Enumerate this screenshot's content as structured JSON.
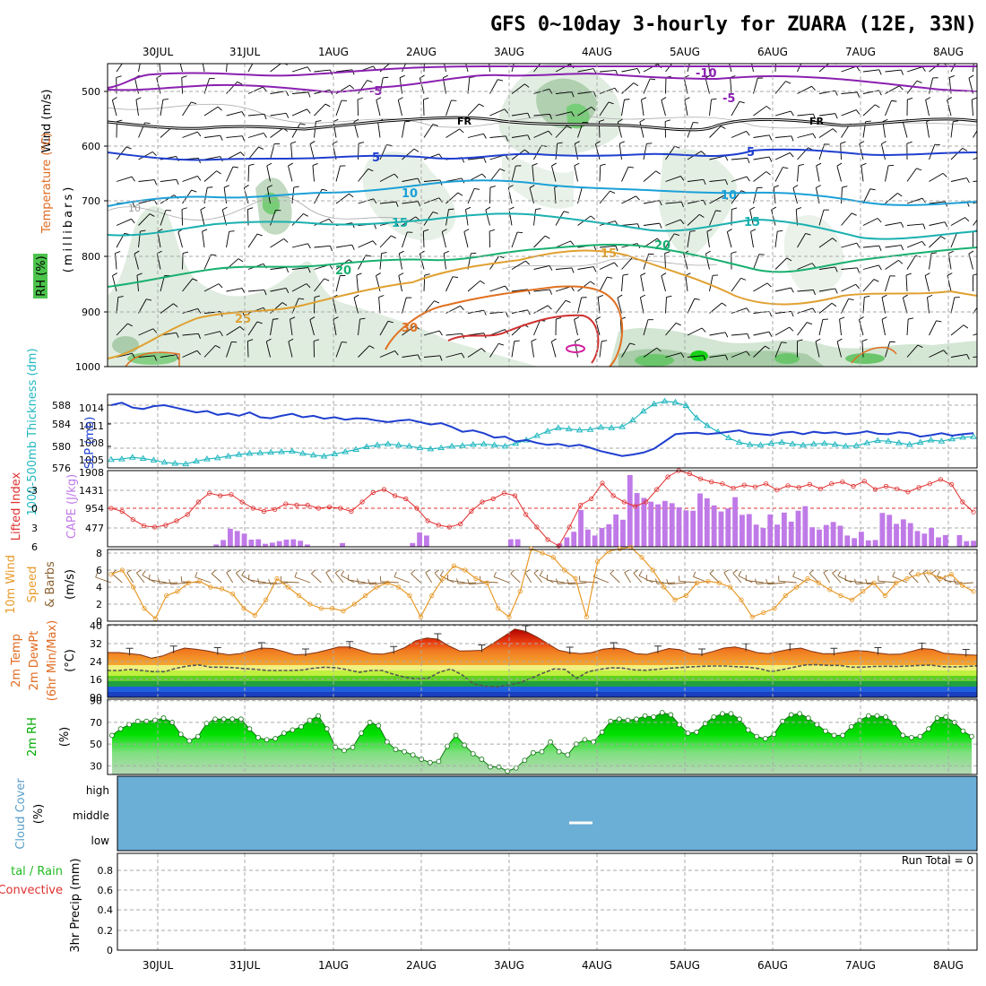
{
  "header": {
    "title": "GFS 0~10day 3-hourly for ZUARA (12E, 33N)"
  },
  "x_axis": {
    "dates": [
      "30JUL",
      "31JUL",
      "1AUG",
      "2AUG",
      "3AUG",
      "4AUG",
      "5AUG",
      "6AUG",
      "7AUG",
      "8AUG"
    ]
  },
  "panels": {
    "upper": {
      "y_title": "(millibars)",
      "label_wind": "Wind (m/s)",
      "label_temp": "Temperature (°C)",
      "label_rh": "RH (%)",
      "ticks": [
        "500",
        "600",
        "700",
        "800",
        "900",
        "1000"
      ],
      "contour_labels": {
        "m10": "-10",
        "m5": "-5",
        "fr": "FR",
        "p5": "5",
        "p10": "10",
        "p15": "15",
        "p20": "20",
        "p25": "25",
        "p30": "30",
        "g10": "10"
      }
    },
    "slp": {
      "label_thk": "1000-500mb Thickness (dm)",
      "label_slp": "SLP (mb)",
      "left_ticks": [
        "588",
        "584",
        "580",
        "576"
      ],
      "right_ticks": [
        "1014",
        "1011",
        "1008",
        "1005"
      ]
    },
    "cape": {
      "label_li": "Lifted Index",
      "label_cape": "CAPE (J/kg)",
      "left_ticks": [
        "-3",
        "0",
        "3",
        "6"
      ],
      "right_ticks": [
        "1908",
        "1431",
        "954",
        "477"
      ]
    },
    "wind": {
      "label_1": "10m Wind",
      "label_2": "Speed",
      "label_3": "& Barbs",
      "unit": "(m/s)",
      "ticks": [
        "8",
        "6",
        "4",
        "2",
        "0"
      ]
    },
    "temp": {
      "label_1": "2m Temp",
      "label_2": "2m DewPt",
      "label_3": "(6hr Min/Max)",
      "unit": "(°C)",
      "ticks": [
        "40",
        "32",
        "24",
        "16",
        "90"
      ]
    },
    "rh": {
      "label": "2m RH",
      "unit": "(%)",
      "ticks": [
        "90",
        "70",
        "50",
        "30"
      ]
    },
    "cloud": {
      "label": "Cloud Cover",
      "unit": "(%)",
      "levels": [
        "high",
        "middle",
        "low"
      ]
    },
    "precip": {
      "label_1": "tal / Rain",
      "label_2": "Convective",
      "label_3": "3hr Precip (mm)",
      "run_total": "Run Total = 0",
      "ticks": [
        "0.8",
        "0.6",
        "0.4",
        "0.2",
        "0"
      ]
    }
  },
  "colors": {
    "slp": "#1f3fcf",
    "thickness": "#22b8c0",
    "lifted": "#e03030",
    "cape_bar": "#c07ae8",
    "wind": "#e89a2a",
    "cloud": "#6baed6",
    "rh_fill": "#00cc00"
  },
  "chart_data": [
    {
      "type": "line",
      "title": "SLP (mb) / 1000-500mb Thickness (dm)",
      "x_range_days": [
        0,
        10
      ],
      "series": [
        {
          "name": "SLP (mb)",
          "values": [
            1015,
            1015.5,
            1014.5,
            1014.2,
            1014.8,
            1015,
            1014.5,
            1014,
            1013.5,
            1013.8,
            1013,
            1013.3,
            1012.8,
            1013.5,
            1012.5,
            1012.3,
            1012.8,
            1013.2,
            1012.5,
            1012.8,
            1012.2,
            1012.5,
            1012,
            1012.3,
            1012.2,
            1011.8,
            1011.5,
            1011.8,
            1012,
            1011.5,
            1011,
            1011.3,
            1010.5,
            1009.5,
            1009.8,
            1009.2,
            1008.3,
            1008.5,
            1007.5,
            1007.8,
            1007.2,
            1006.8,
            1007,
            1006.5,
            1006.8,
            1006.2,
            1005.5,
            1005,
            1004.5,
            1004.8,
            1005.2,
            1006,
            1007.5,
            1009,
            1009.2,
            1009.3,
            1009,
            1009.2,
            1009.5,
            1009.8,
            1009.2,
            1009,
            1008.8,
            1009.3,
            1009.5,
            1009,
            1009.5,
            1009.2,
            1009.4,
            1009,
            1009.2,
            1009.6,
            1009.1,
            1009,
            1009.4,
            1009.2,
            1008.5,
            1008.8,
            1009.2,
            1008.7,
            1009,
            1009.2
          ]
        },
        {
          "name": "1000-500mb Thickness (dm)",
          "values": [
            577.5,
            577.6,
            577.9,
            577.7,
            577.4,
            577,
            576.8,
            576.7,
            577.2,
            577.6,
            577.8,
            578.1,
            578.4,
            578.6,
            578.7,
            578.8,
            578.9,
            579.0,
            578.6,
            578.3,
            578.1,
            578.5,
            578.9,
            579.3,
            579.8,
            580.1,
            580.3,
            580.1,
            579.9,
            579.6,
            579.4,
            579.6,
            579.9,
            580.0,
            580.2,
            580.3,
            580.1,
            579.9,
            580.4,
            581.0,
            581.8,
            582.6,
            583.2,
            583.0,
            582.8,
            582.9,
            583.3,
            583.2,
            583.4,
            584.6,
            586.2,
            587.5,
            588.0,
            587.8,
            587.2,
            585.0,
            583.6,
            582.5,
            581.4,
            580.6,
            580.2,
            580.1,
            580.4,
            580.6,
            580.3,
            580.1,
            580.3,
            580.4,
            580.2,
            579.9,
            580.0,
            580.5,
            580.9,
            580.8,
            580.5,
            580.2,
            580.6,
            581.0,
            580.8,
            581.2,
            581.5,
            581.6
          ]
        }
      ]
    },
    {
      "type": "bar",
      "title": "CAPE (J/kg) / Lifted Index",
      "series": [
        {
          "name": "CAPE (J/kg)",
          "values": [
            0,
            0,
            0,
            0,
            0,
            0,
            0,
            0,
            0,
            0,
            0,
            0,
            0,
            0,
            0,
            60,
            180,
            480,
            420,
            350,
            190,
            200,
            80,
            110,
            150,
            190,
            200,
            160,
            60,
            0,
            0,
            0,
            0,
            100,
            0,
            0,
            0,
            0,
            0,
            0,
            0,
            0,
            0,
            100,
            380,
            300,
            0,
            0,
            0,
            0,
            0,
            0,
            0,
            0,
            0,
            0,
            0,
            200,
            200,
            0,
            0,
            0,
            0,
            0,
            90,
            250,
            400,
            980,
            460,
            300,
            500,
            600,
            860,
            720,
            1908,
            1430,
            1300,
            1200,
            1130,
            1220,
            1160,
            1050,
            970,
            960,
            1420,
            1290,
            1100,
            940,
            1020,
            1320,
            850,
            870,
            590,
            500,
            860,
            590,
            910,
            670,
            960,
            1080,
            520,
            460,
            580,
            660,
            560,
            300,
            230,
            400,
            170,
            180,
            900,
            850,
            610,
            730,
            630,
            420,
            350,
            500,
            250,
            310,
            0,
            310,
            150,
            160
          ]
        },
        {
          "name": "Lifted Index",
          "values": [
            0,
            0.5,
            1.8,
            2.8,
            3,
            2.7,
            2,
            1,
            -1,
            -2.4,
            -2,
            -2.2,
            -1,
            0,
            0.5,
            0.2,
            -0.7,
            -0.5,
            -0.5,
            0,
            -0.2,
            0,
            0.5,
            -1,
            -2.5,
            -3,
            -2,
            -1.5,
            0,
            2,
            2.7,
            3,
            2.5,
            0.5,
            -1,
            -1.5,
            -2.4,
            -2,
            1,
            3,
            5,
            6,
            3,
            -0.5,
            -1.5,
            -4,
            -2,
            -1,
            -0.3,
            -1,
            -3,
            -5,
            -6,
            -5.5,
            -4.7,
            -4.2,
            -3.9,
            -3.2,
            -3.7,
            -3.4,
            -3.9,
            -2.9,
            -3.6,
            -3.3,
            -3.8,
            -3.1,
            -3.9,
            -4.2,
            -3.5,
            -4.3,
            -3.0,
            -3.5,
            -3.1,
            -2.6,
            -3.3,
            -3.9,
            -4.6,
            -3.8,
            -1,
            0.6
          ]
        }
      ]
    },
    {
      "type": "line",
      "title": "10m Wind Speed (m/s)",
      "series": [
        {
          "name": "10m Wind Speed",
          "values": [
            5.5,
            6,
            4,
            1.5,
            0.3,
            3,
            3.5,
            4.5,
            4.7,
            4,
            3.8,
            3.2,
            1.5,
            0.7,
            2.5,
            5,
            4,
            3,
            2,
            1.5,
            1.5,
            1.2,
            2,
            3,
            4,
            4.5,
            4,
            3,
            0.5,
            3,
            5,
            6.5,
            6,
            5,
            4.5,
            1.5,
            0.5,
            3.5,
            8.5,
            8,
            7.5,
            6,
            5,
            0.5,
            7,
            8.2,
            8.5,
            8.7,
            7.5,
            6,
            4,
            2.5,
            3,
            4.5,
            4.7,
            4.5,
            4,
            2.5,
            0.5,
            1,
            1.5,
            3,
            4,
            5,
            4.5,
            3.7,
            3,
            2.5,
            3.5,
            4.5,
            3,
            4.5,
            5,
            5.5,
            5.7,
            5,
            5.5,
            4.2,
            3.5
          ]
        }
      ]
    },
    {
      "type": "area",
      "title": "2m Temp / 2m DewPt (°C)",
      "series": [
        {
          "name": "2m Temp",
          "values": [
            28,
            28,
            27.5,
            27,
            25.5,
            26.5,
            28.5,
            30,
            29.5,
            28.8,
            27.8,
            27,
            27.5,
            28.8,
            30,
            29.8,
            28.5,
            27,
            27.2,
            28,
            29.2,
            30.5,
            30.5,
            29,
            27.5,
            27.3,
            28.3,
            30.2,
            33.3,
            34.5,
            34,
            31,
            28.7,
            28.8,
            29,
            32,
            35.2,
            38.5,
            37.5,
            35,
            32,
            29,
            28,
            27.5,
            28,
            29.5,
            30,
            29.5,
            27.5,
            27.2,
            28.5,
            29.8,
            29.3,
            27.5,
            27.2,
            28.5,
            30,
            30.5,
            29.5,
            28,
            27.5,
            28.5,
            29.5,
            30,
            28.5,
            27.5,
            27.5,
            28.2,
            28.9,
            28.6,
            27.8,
            27.2,
            27.3,
            28.5,
            29.8,
            29.4,
            27.7,
            27.3,
            27,
            26.8
          ]
        },
        {
          "name": "2m DewPt",
          "values": [
            20,
            20,
            20.5,
            20,
            19.5,
            19.5,
            21,
            22,
            22.5,
            21.5,
            21.5,
            21.3,
            20.8,
            20.5,
            20,
            20,
            20,
            20.2,
            21,
            21.5,
            21.2,
            20.3,
            19.2,
            20,
            20,
            18.3,
            17,
            16.3,
            16.5,
            19.2,
            20.7,
            18,
            14,
            13,
            12.7,
            13.5,
            14.5,
            16.5,
            18.7,
            20.7,
            20.5,
            16.5,
            19.5,
            20.5,
            21.2,
            21.1,
            20.3,
            20.1,
            20.5,
            21,
            21.3,
            21.6,
            21.9,
            22,
            22,
            21.7,
            21.5,
            20.8,
            19.5,
            20.4,
            21.5,
            22.5,
            22.6,
            22.3,
            22.3,
            21.5,
            21.5,
            21.8,
            21.9,
            21.8,
            22,
            22.3,
            22.4,
            21.7,
            21.6,
            21.8,
            22.1
          ]
        }
      ]
    },
    {
      "type": "area",
      "title": "2m RH (%)",
      "series": [
        {
          "name": "2m RH",
          "values": [
            58,
            64,
            68,
            71,
            71,
            72,
            74,
            70,
            59,
            53,
            57,
            69,
            73,
            73,
            73,
            73,
            64,
            56,
            54,
            55,
            60,
            63,
            66,
            72,
            76,
            64,
            47,
            44,
            47,
            60,
            70,
            67,
            52,
            45,
            43,
            40,
            36,
            33,
            34,
            48,
            58,
            49,
            41,
            36,
            29,
            29,
            25,
            28,
            35,
            42,
            43,
            52,
            43,
            40,
            50,
            54,
            52,
            61,
            71,
            73,
            72,
            73,
            76,
            75,
            79,
            77,
            68,
            60,
            61,
            69,
            75,
            78,
            78,
            73,
            63,
            57,
            55,
            59,
            71,
            77,
            78,
            74,
            68,
            62,
            58,
            58,
            66,
            72,
            76,
            76,
            75,
            69,
            58,
            56,
            57,
            64,
            74,
            75,
            70,
            62,
            57
          ]
        }
      ]
    },
    {
      "type": "bar",
      "title": "3hr Precip (mm)",
      "series": [
        {
          "name": "3hr Precip",
          "values": [
            0
          ]
        }
      ],
      "ylim": [
        0,
        0.9
      ]
    }
  ]
}
